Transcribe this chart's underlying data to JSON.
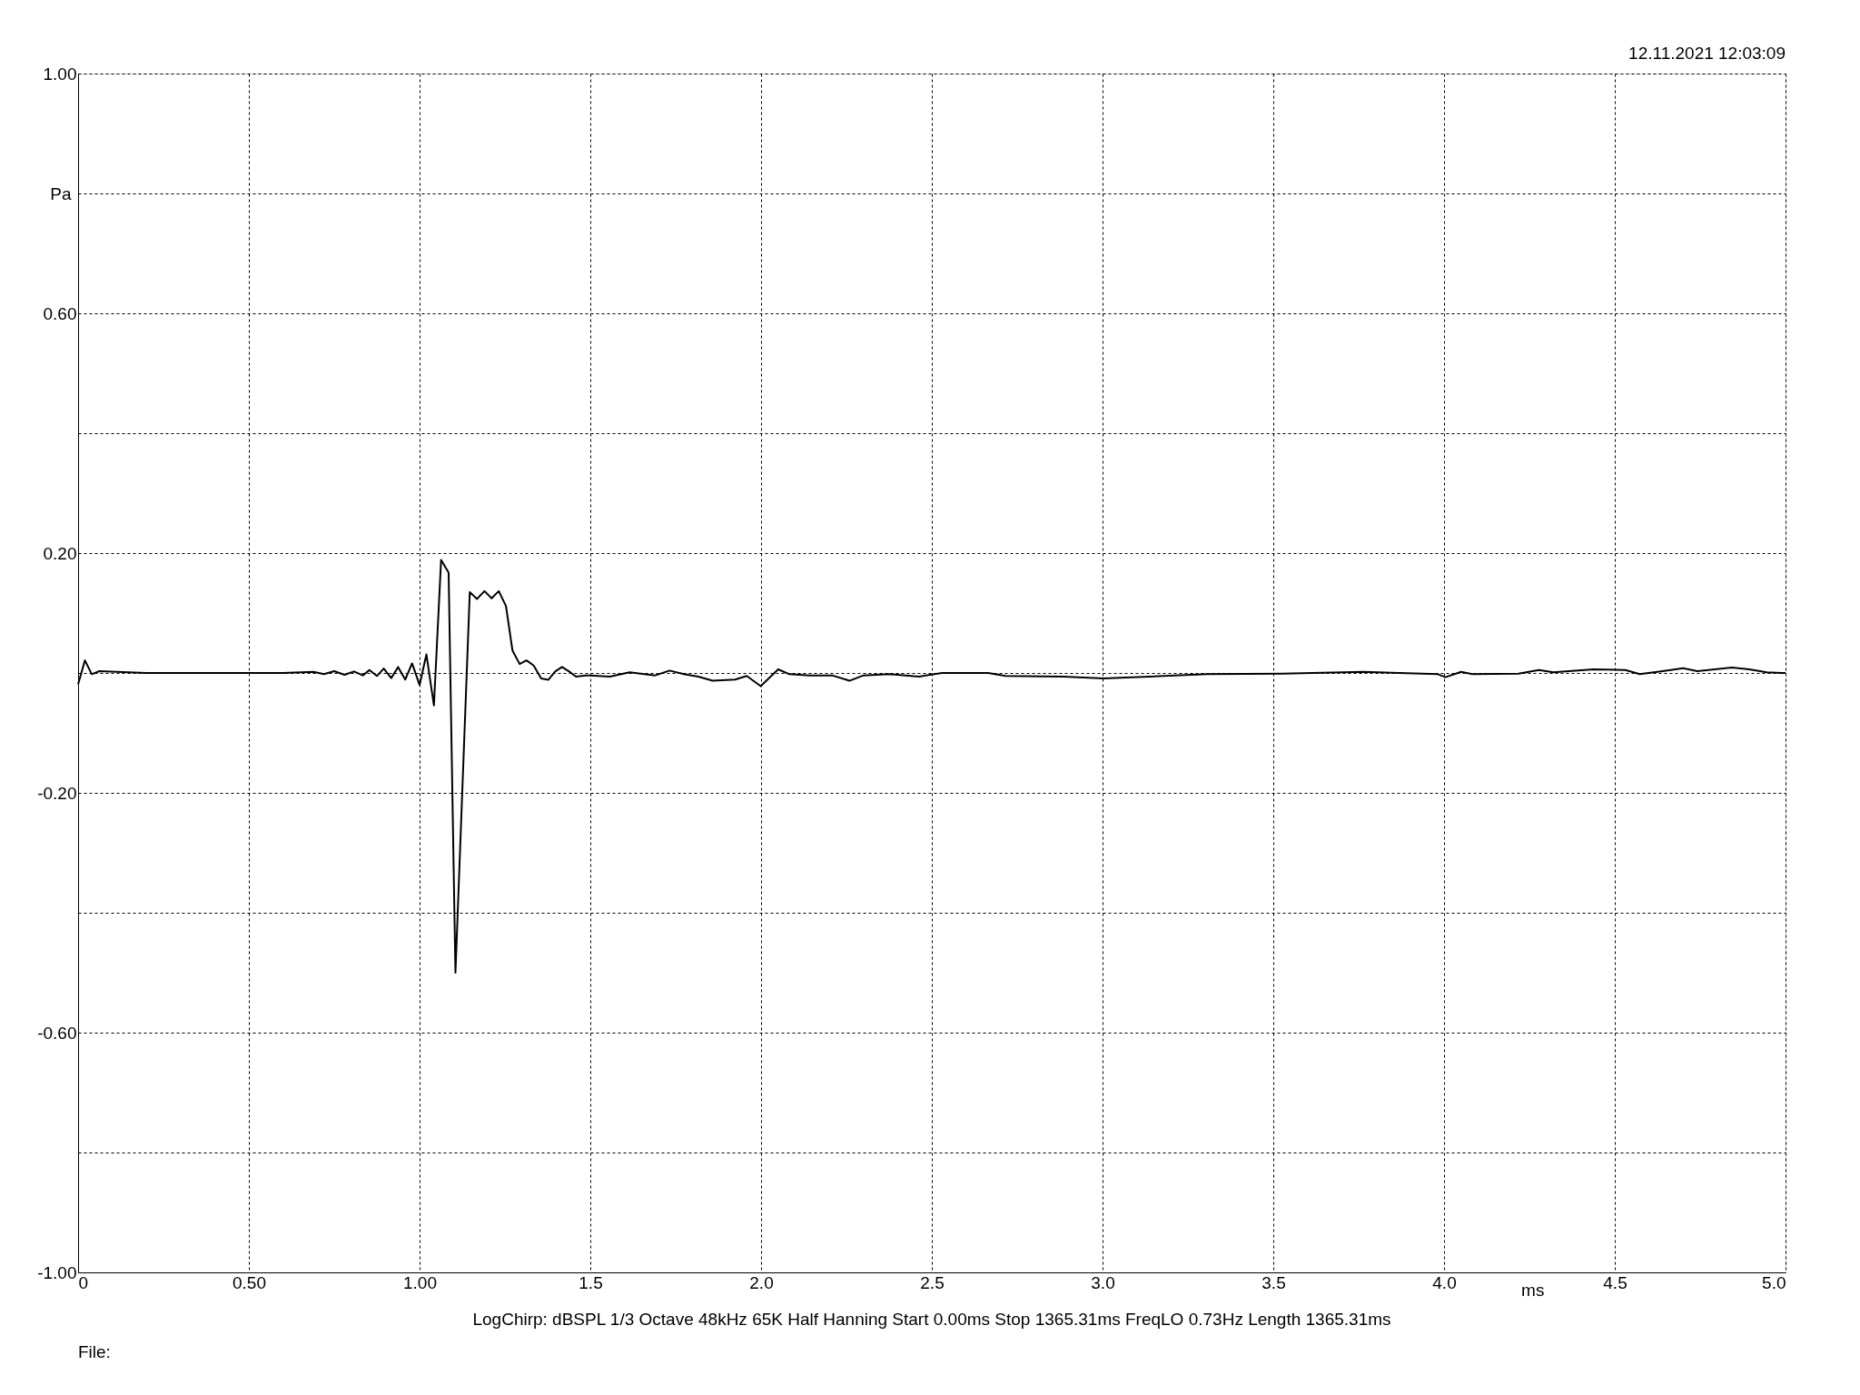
{
  "chart_data": {
    "type": "line",
    "xlabel": "ms",
    "ylabel": "Pa",
    "annotations": [
      "12.11.2021 12:03:09",
      "LogChirp:  dBSPL   1/3 Octave   48kHz   65K   Half Hanning   Start 0.00ms    Stop 1365.31ms    FreqLO 0.73Hz    Length 1365.31ms",
      "File:"
    ],
    "xlim": [
      0,
      5
    ],
    "ylim": [
      -1,
      1
    ],
    "xticks": [
      0,
      {
        "value": 0.5,
        "label": "0.50"
      },
      {
        "value": 1,
        "label": "1.00"
      },
      1.5,
      {
        "value": 2,
        "label": "2.0"
      },
      2.5,
      {
        "value": 3,
        "label": "3.0"
      },
      3.5,
      {
        "value": 4,
        "label": "4.0"
      },
      4.5,
      {
        "value": 5,
        "label": "5.0"
      }
    ],
    "yticks": [
      {
        "value": -1,
        "label": "-1.00"
      },
      {
        "value": -0.8,
        "label": null
      },
      {
        "value": -0.6,
        "label": "-0.60"
      },
      {
        "value": -0.4,
        "label": null
      },
      {
        "value": -0.2,
        "label": "-0.20"
      },
      {
        "value": 0,
        "label": null
      },
      {
        "value": 0.2,
        "label": "0.20"
      },
      {
        "value": 0.4,
        "label": null
      },
      {
        "value": 0.6,
        "label": "0.60"
      },
      {
        "value": 0.8,
        "label": null
      },
      {
        "value": 1,
        "label": "1.00"
      }
    ],
    "grid": true,
    "line_style": "solid",
    "legend": false,
    "series": [
      {
        "color": "#000000",
        "x": [
          0,
          0.02,
          0.04,
          0.062,
          0.2,
          0.4,
          0.6,
          0.689,
          0.72,
          0.75,
          0.78,
          0.808,
          0.834,
          0.853,
          0.875,
          0.895,
          0.917,
          0.937,
          0.958,
          0.978,
          1.0,
          1.02,
          1.042,
          1.063,
          1.085,
          1.105,
          1.147,
          1.168,
          1.19,
          1.211,
          1.232,
          1.253,
          1.272,
          1.293,
          1.313,
          1.334,
          1.356,
          1.377,
          1.397,
          1.417,
          1.438,
          1.458,
          1.487,
          1.498,
          1.557,
          1.615,
          1.69,
          1.732,
          1.774,
          1.816,
          1.858,
          1.924,
          1.958,
          1.999,
          2.05,
          2.083,
          2.142,
          2.208,
          2.259,
          2.3,
          2.375,
          2.463,
          2.53,
          2.665,
          2.716,
          2.885,
          3.003,
          3.138,
          3.307,
          3.526,
          3.762,
          3.982,
          4.004,
          4.05,
          4.083,
          4.218,
          4.278,
          4.32,
          4.438,
          4.531,
          4.573,
          4.64,
          4.7,
          4.742,
          4.843,
          4.894,
          4.945,
          4.99,
          5.0
        ],
        "values": [
          -0.019,
          0.021,
          -0.002,
          0.003,
          0,
          0,
          0,
          0.002,
          -0.002,
          0.003,
          -0.003,
          0.0025,
          -0.004,
          0.005,
          -0.005,
          0.0075,
          -0.0085,
          0.01,
          -0.011,
          0.016,
          -0.02,
          0.031,
          -0.054,
          0.1885,
          0.1675,
          -0.5,
          0.135,
          0.1235,
          0.1365,
          0.1245,
          0.1365,
          0.1115,
          0.0375,
          0.015,
          0.021,
          0.0125,
          -0.009,
          -0.0115,
          0.0025,
          0.01,
          0.0025,
          -0.006,
          -0.004,
          -0.004,
          -0.006,
          0.001,
          -0.004,
          0.004,
          -0.002,
          -0.006,
          -0.013,
          -0.011,
          -0.005,
          -0.022,
          0.006,
          -0.002,
          -0.004,
          -0.004,
          -0.013,
          -0.004,
          -0.002,
          -0.006,
          0,
          0,
          -0.005,
          -0.006,
          -0.009,
          -0.006,
          -0.002,
          -0.001,
          0.002,
          -0.002,
          -0.007,
          0.002,
          -0.002,
          -0.001,
          0.005,
          0.001,
          0.006,
          0.005,
          -0.002,
          0.003,
          0.008,
          0.003,
          0.009,
          0.006,
          0.001,
          0,
          0
        ]
      }
    ]
  }
}
